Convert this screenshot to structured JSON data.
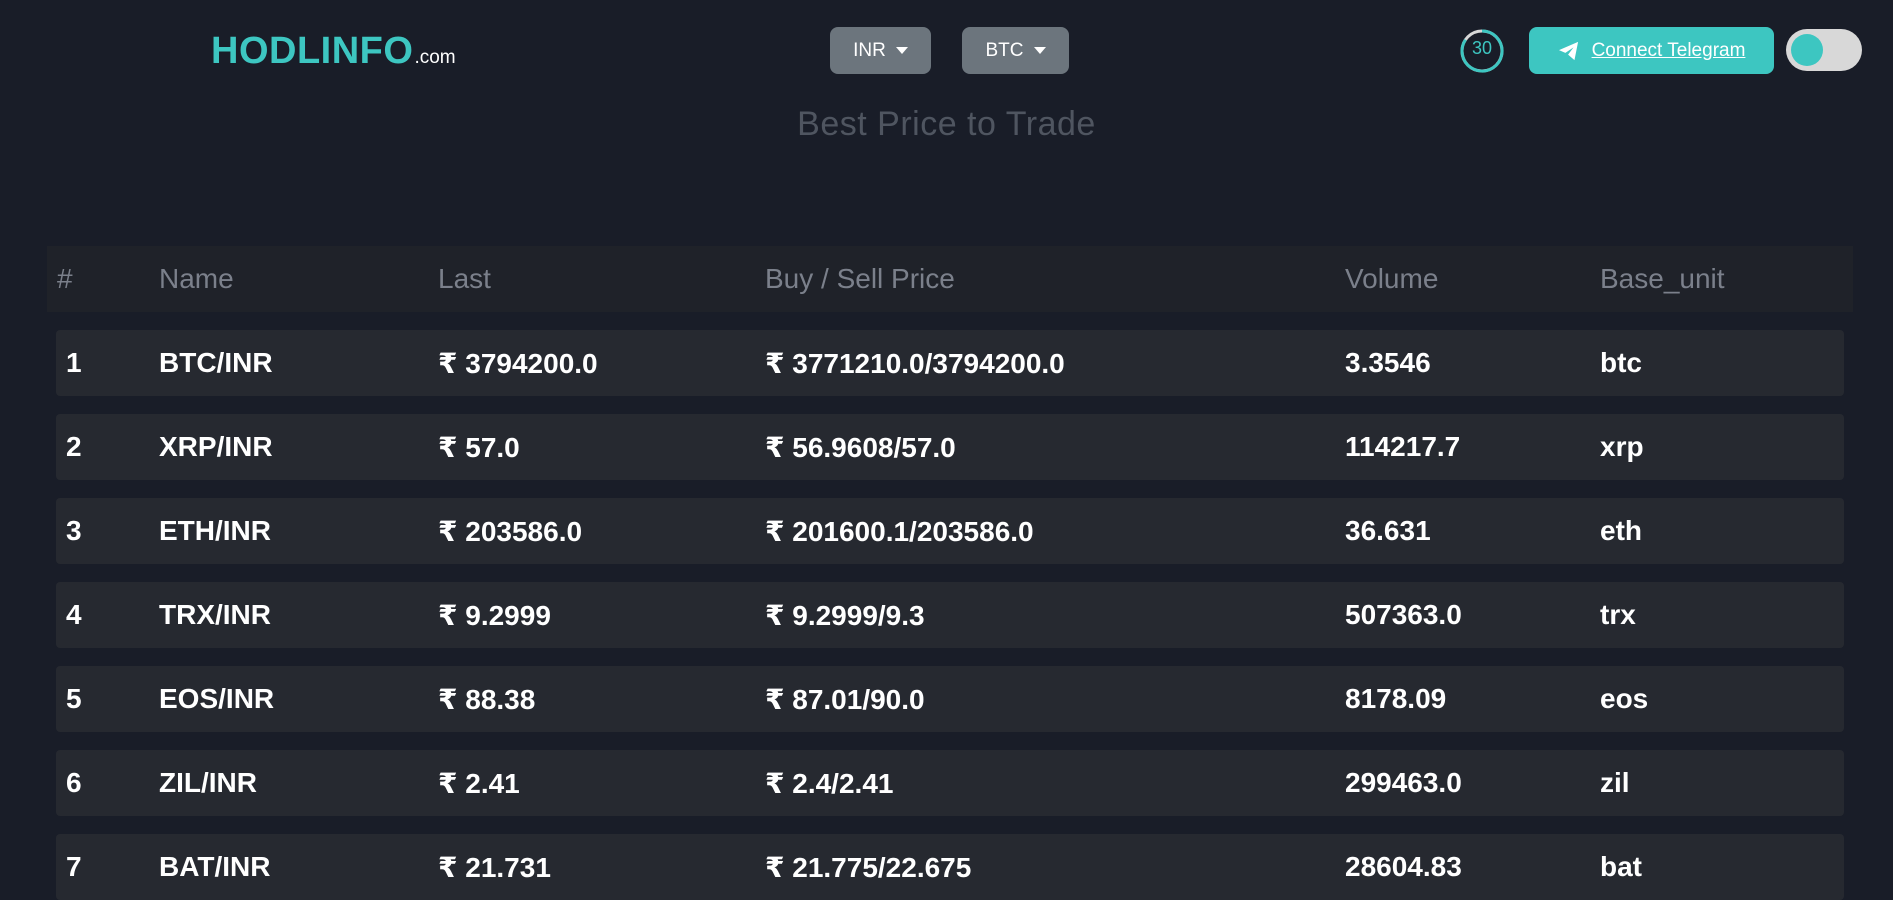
{
  "header": {
    "logo_main": "HODLINFO",
    "logo_suffix": ".com",
    "currency_dropdown": "INR",
    "coin_dropdown": "BTC",
    "timer": "30",
    "telegram_label": "Connect Telegram",
    "accent_color": "#3dc6c1"
  },
  "subtitle": "Best Price to Trade",
  "table": {
    "columns": [
      "#",
      "Name",
      "Last",
      "Buy / Sell Price",
      "Volume",
      "Base_unit"
    ],
    "rows": [
      {
        "idx": "1",
        "name": "BTC/INR",
        "last": "₹ 3794200.0",
        "buy_sell": "₹ 3771210.0/3794200.0",
        "volume": "3.3546",
        "base_unit": "btc"
      },
      {
        "idx": "2",
        "name": "XRP/INR",
        "last": "₹ 57.0",
        "buy_sell": "₹ 56.9608/57.0",
        "volume": "114217.7",
        "base_unit": "xrp"
      },
      {
        "idx": "3",
        "name": "ETH/INR",
        "last": "₹ 203586.0",
        "buy_sell": "₹ 201600.1/203586.0",
        "volume": "36.631",
        "base_unit": "eth"
      },
      {
        "idx": "4",
        "name": "TRX/INR",
        "last": "₹ 9.2999",
        "buy_sell": "₹ 9.2999/9.3",
        "volume": "507363.0",
        "base_unit": "trx"
      },
      {
        "idx": "5",
        "name": "EOS/INR",
        "last": "₹ 88.38",
        "buy_sell": "₹ 87.01/90.0",
        "volume": "8178.09",
        "base_unit": "eos"
      },
      {
        "idx": "6",
        "name": "ZIL/INR",
        "last": "₹ 2.41",
        "buy_sell": "₹ 2.4/2.41",
        "volume": "299463.0",
        "base_unit": "zil"
      },
      {
        "idx": "7",
        "name": "BAT/INR",
        "last": "₹ 21.731",
        "buy_sell": "₹ 21.775/22.675",
        "volume": "28604.83",
        "base_unit": "bat"
      }
    ]
  }
}
